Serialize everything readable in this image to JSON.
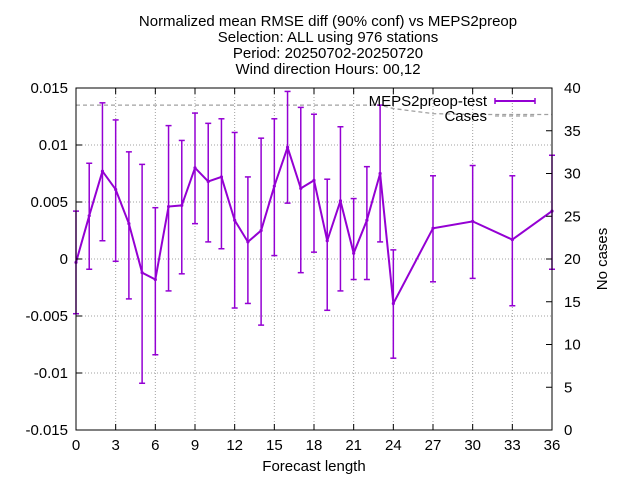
{
  "chart_data": {
    "type": "line",
    "title_lines": [
      "Normalized mean RMSE diff (90% conf) vs MEPS2preop",
      "Selection: ALL using   976 stations",
      "Period: 20250702-20250720",
      "Wind direction   Hours: 00,12"
    ],
    "xlabel": "Forecast length",
    "ylabel": "",
    "y2label": "No cases",
    "xlim": [
      0,
      36
    ],
    "ylim": [
      -0.015,
      0.015
    ],
    "y2lim": [
      0,
      40
    ],
    "xticks": [
      0,
      3,
      6,
      9,
      12,
      15,
      18,
      21,
      24,
      27,
      30,
      33,
      36
    ],
    "yticks": [
      -0.015,
      -0.01,
      -0.005,
      0,
      0.005,
      0.01,
      0.015
    ],
    "ytick_labels": [
      "-0.015",
      "-0.01",
      "-0.005",
      "0",
      "0.005",
      "0.01",
      "0.015"
    ],
    "y2ticks": [
      0,
      5,
      10,
      15,
      20,
      25,
      30,
      35,
      40
    ],
    "grid": true,
    "legend_position": "top-right",
    "series": [
      {
        "name": "MEPS2preop-test",
        "color": "#9400d3",
        "axis": "y",
        "x": [
          0,
          1,
          2,
          3,
          4,
          5,
          6,
          7,
          8,
          9,
          10,
          11,
          12,
          13,
          14,
          15,
          16,
          17,
          18,
          19,
          20,
          21,
          22,
          23,
          24,
          27,
          30,
          33,
          36
        ],
        "y": [
          -0.0003,
          0.0038,
          0.0077,
          0.0061,
          0.0031,
          -0.0012,
          -0.0018,
          0.0046,
          0.0047,
          0.008,
          0.0068,
          0.0072,
          0.0034,
          0.0015,
          0.0025,
          0.0064,
          0.0098,
          0.0062,
          0.0069,
          0.0016,
          0.0051,
          0.0005,
          0.0034,
          0.0075,
          -0.0039,
          0.0027,
          0.0033,
          0.0017,
          0.0042
        ],
        "y_low": [
          -0.0048,
          -0.0009,
          0.0016,
          -0.0002,
          -0.0035,
          -0.0109,
          -0.0084,
          -0.0028,
          -0.0013,
          0.0031,
          0.0015,
          0.0009,
          -0.0043,
          -0.0039,
          -0.0058,
          0.0003,
          0.0049,
          -0.0012,
          0.0006,
          -0.0045,
          -0.0028,
          -0.0018,
          -0.0018,
          0.0015,
          -0.0087,
          -0.002,
          -0.0017,
          -0.0041,
          -0.0009
        ],
        "y_high": [
          0.0042,
          0.0084,
          0.0137,
          0.0122,
          0.0094,
          0.0083,
          0.0045,
          0.0117,
          0.0104,
          0.0128,
          0.0119,
          0.0123,
          0.0111,
          0.0072,
          0.0106,
          0.0123,
          0.0147,
          0.0133,
          0.0127,
          0.007,
          0.0116,
          0.0053,
          0.0081,
          0.0135,
          0.0008,
          0.0073,
          0.0082,
          0.0073,
          0.0091
        ]
      },
      {
        "name": "Cases",
        "color": "#a0a0a0",
        "axis": "y2",
        "x": [
          0,
          1,
          2,
          3,
          4,
          5,
          6,
          7,
          8,
          9,
          10,
          11,
          12,
          13,
          14,
          15,
          16,
          17,
          18,
          19,
          20,
          21,
          22,
          23,
          24,
          27,
          30,
          33,
          36
        ],
        "y": [
          38,
          38,
          38,
          38,
          38,
          38,
          38,
          38,
          38,
          38,
          38,
          38,
          38,
          38,
          38,
          38,
          38,
          38,
          38,
          38,
          38,
          38,
          38,
          38,
          37.6,
          37,
          36.9,
          36.9,
          36.9
        ]
      }
    ]
  }
}
